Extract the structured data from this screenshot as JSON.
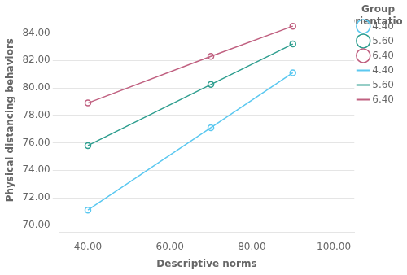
{
  "chart_data": {
    "type": "line",
    "x_label": "Descriptive norms",
    "y_label": "Physical distancing behaviors",
    "legend_title": "Group\nOrientation",
    "x": [
      40,
      70,
      90
    ],
    "series": [
      {
        "name": "4.40",
        "color": "#5BC8F0",
        "values": [
          71.1,
          77.1,
          81.1
        ]
      },
      {
        "name": "5.60",
        "color": "#2E9E8F",
        "values": [
          75.8,
          80.25,
          83.2
        ]
      },
      {
        "name": "6.40",
        "color": "#C06080",
        "values": [
          78.9,
          82.3,
          84.5
        ]
      }
    ],
    "xlim": [
      33,
      105
    ],
    "ylim": [
      69.5,
      85.8
    ],
    "xticks": [
      {
        "value": 40,
        "label": "40.00"
      },
      {
        "value": 60,
        "label": "60.00"
      },
      {
        "value": 80,
        "label": "80.00"
      },
      {
        "value": 100,
        "label": "100.00"
      }
    ],
    "yticks": [
      {
        "value": 70,
        "label": "70.00"
      },
      {
        "value": 72,
        "label": "72.00"
      },
      {
        "value": 74,
        "label": "74.00"
      },
      {
        "value": 76,
        "label": "76.00"
      },
      {
        "value": 78,
        "label": "78.00"
      },
      {
        "value": 80,
        "label": "80.00"
      },
      {
        "value": 82,
        "label": "82.00"
      },
      {
        "value": 84,
        "label": "84.00"
      }
    ],
    "grid": "y",
    "legend": "right"
  }
}
